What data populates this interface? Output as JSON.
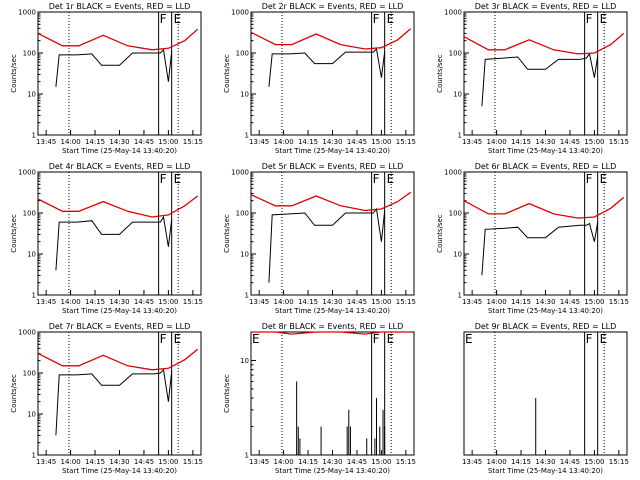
{
  "colors": {
    "events": "#000000",
    "lld": "#e00000",
    "background": "#ffffff"
  },
  "chart_data": [
    {
      "type": "line",
      "title": "Det 1r BLACK = Events, RED = LLD",
      "xlabel": "Start Time (25-May-14 13:40:20)",
      "ylabel": "Counts/sec",
      "x_ticks": [
        "13:45",
        "14:00",
        "14:15",
        "14:30",
        "14:45",
        "15:00",
        "15:15"
      ],
      "y_ticks": [
        "1",
        "10",
        "100",
        "1000"
      ],
      "y_scale": "log",
      "ylim": [
        1,
        1000
      ],
      "annotations": [
        "F",
        "E"
      ],
      "series": [
        {
          "name": "Events",
          "color": "#000000",
          "x": [
            "13:51",
            "13:53",
            "14:04",
            "14:13",
            "14:19",
            "14:30",
            "14:38",
            "14:51",
            "14:55",
            "14:57",
            "15:00",
            "15:02"
          ],
          "y": [
            15,
            90,
            90,
            95,
            50,
            50,
            100,
            100,
            100,
            120,
            20,
            110
          ]
        },
        {
          "name": "LLD",
          "color": "#e00000",
          "x": [
            "13:40",
            "13:55",
            "14:05",
            "14:20",
            "14:35",
            "14:50",
            "15:00",
            "15:10",
            "15:18"
          ],
          "y": [
            300,
            150,
            150,
            270,
            150,
            120,
            130,
            200,
            380
          ]
        }
      ]
    },
    {
      "type": "line",
      "title": "Det 2r BLACK = Events, RED = LLD",
      "xlabel": "Start Time (25-May-14 13:40:20)",
      "ylabel": "Counts/sec",
      "x_ticks": [
        "13:45",
        "14:00",
        "14:15",
        "14:30",
        "14:45",
        "15:00",
        "15:15"
      ],
      "y_ticks": [
        "1",
        "10",
        "100",
        "1000"
      ],
      "y_scale": "log",
      "ylim": [
        1,
        1000
      ],
      "annotations": [
        "F",
        "E"
      ],
      "series": [
        {
          "name": "Events",
          "color": "#000000",
          "x": [
            "13:51",
            "13:53",
            "14:04",
            "14:13",
            "14:19",
            "14:30",
            "14:38",
            "14:51",
            "14:55",
            "14:57",
            "15:00",
            "15:02"
          ],
          "y": [
            15,
            95,
            95,
            100,
            55,
            55,
            105,
            105,
            105,
            125,
            25,
            110
          ]
        },
        {
          "name": "LLD",
          "color": "#e00000",
          "x": [
            "13:40",
            "13:55",
            "14:05",
            "14:20",
            "14:35",
            "14:50",
            "15:00",
            "15:10",
            "15:18"
          ],
          "y": [
            320,
            160,
            160,
            290,
            160,
            125,
            135,
            210,
            390
          ]
        }
      ]
    },
    {
      "type": "line",
      "title": "Det 3r BLACK = Events, RED = LLD",
      "xlabel": "Start Time (25-May-14 13:40:20)",
      "ylabel": "Counts/sec",
      "x_ticks": [
        "13:45",
        "14:00",
        "14:15",
        "14:30",
        "14:45",
        "15:00",
        "15:15"
      ],
      "y_ticks": [
        "1",
        "10",
        "100",
        "1000"
      ],
      "y_scale": "log",
      "ylim": [
        1,
        1000
      ],
      "annotations": [
        "F",
        "E"
      ],
      "series": [
        {
          "name": "Events",
          "color": "#000000",
          "x": [
            "13:51",
            "13:53",
            "14:04",
            "14:13",
            "14:19",
            "14:30",
            "14:38",
            "14:51",
            "14:55",
            "14:57",
            "15:00",
            "15:02"
          ],
          "y": [
            5,
            70,
            75,
            80,
            40,
            40,
            70,
            70,
            75,
            95,
            25,
            85
          ]
        },
        {
          "name": "LLD",
          "color": "#e00000",
          "x": [
            "13:40",
            "13:55",
            "14:05",
            "14:20",
            "14:35",
            "14:50",
            "15:00",
            "15:10",
            "15:18"
          ],
          "y": [
            250,
            120,
            120,
            210,
            120,
            95,
            100,
            160,
            300
          ]
        }
      ]
    },
    {
      "type": "line",
      "title": "Det 4r BLACK = Events, RED = LLD",
      "xlabel": "Start Time (25-May-14 13:40:20)",
      "ylabel": "Counts/sec",
      "x_ticks": [
        "13:45",
        "14:00",
        "14:15",
        "14:30",
        "14:45",
        "15:00",
        "15:15"
      ],
      "y_ticks": [
        "1",
        "10",
        "100",
        "1000"
      ],
      "y_scale": "log",
      "ylim": [
        1,
        1000
      ],
      "annotations": [
        "F",
        "E"
      ],
      "series": [
        {
          "name": "Events",
          "color": "#000000",
          "x": [
            "13:51",
            "13:53",
            "14:04",
            "14:13",
            "14:19",
            "14:30",
            "14:38",
            "14:51",
            "14:55",
            "14:57",
            "15:00",
            "15:02"
          ],
          "y": [
            4,
            60,
            60,
            65,
            30,
            30,
            60,
            60,
            60,
            80,
            15,
            70
          ]
        },
        {
          "name": "LLD",
          "color": "#e00000",
          "x": [
            "13:40",
            "13:55",
            "14:05",
            "14:20",
            "14:35",
            "14:50",
            "15:00",
            "15:10",
            "15:18"
          ],
          "y": [
            220,
            110,
            110,
            190,
            110,
            80,
            90,
            150,
            260
          ]
        }
      ]
    },
    {
      "type": "line",
      "title": "Det 5r BLACK = Events, RED = LLD",
      "xlabel": "Start Time (25-May-14 13:40:20)",
      "ylabel": "Counts/sec",
      "x_ticks": [
        "13:45",
        "14:00",
        "14:15",
        "14:30",
        "14:45",
        "15:00",
        "15:15"
      ],
      "y_ticks": [
        "1",
        "10",
        "100",
        "1000"
      ],
      "y_scale": "log",
      "ylim": [
        1,
        1000
      ],
      "annotations": [
        "F",
        "E"
      ],
      "series": [
        {
          "name": "Events",
          "color": "#000000",
          "x": [
            "13:51",
            "13:53",
            "14:04",
            "14:13",
            "14:19",
            "14:30",
            "14:38",
            "14:51",
            "14:55",
            "14:57",
            "15:00",
            "15:02"
          ],
          "y": [
            2,
            90,
            95,
            100,
            50,
            50,
            100,
            100,
            100,
            125,
            20,
            115
          ]
        },
        {
          "name": "LLD",
          "color": "#e00000",
          "x": [
            "13:40",
            "13:55",
            "14:05",
            "14:20",
            "14:35",
            "14:50",
            "15:00",
            "15:10",
            "15:18"
          ],
          "y": [
            280,
            150,
            150,
            260,
            150,
            115,
            125,
            190,
            320
          ]
        }
      ]
    },
    {
      "type": "line",
      "title": "Det 6r BLACK = Events, RED = LLD",
      "xlabel": "Start Time (25-May-14 13:40:20)",
      "ylabel": "Counts/sec",
      "x_ticks": [
        "13:45",
        "14:00",
        "14:15",
        "14:30",
        "14:45",
        "15:00",
        "15:15"
      ],
      "y_ticks": [
        "1",
        "10",
        "100",
        "1000"
      ],
      "y_scale": "log",
      "ylim": [
        1,
        1000
      ],
      "annotations": [
        "F",
        "E"
      ],
      "series": [
        {
          "name": "Events",
          "color": "#000000",
          "x": [
            "13:51",
            "13:53",
            "14:04",
            "14:13",
            "14:19",
            "14:30",
            "14:38",
            "14:51",
            "14:55",
            "14:57",
            "15:00",
            "15:02"
          ],
          "y": [
            3,
            40,
            42,
            45,
            25,
            25,
            45,
            50,
            50,
            55,
            20,
            60
          ]
        },
        {
          "name": "LLD",
          "color": "#e00000",
          "x": [
            "13:40",
            "13:55",
            "14:05",
            "14:20",
            "14:35",
            "14:50",
            "15:00",
            "15:10",
            "15:18"
          ],
          "y": [
            200,
            95,
            95,
            170,
            95,
            75,
            80,
            130,
            240
          ]
        }
      ]
    },
    {
      "type": "line",
      "title": "Det 7r BLACK = Events, RED = LLD",
      "xlabel": "Start Time (25-May-14 13:40:20)",
      "ylabel": "Counts/sec",
      "x_ticks": [
        "13:45",
        "14:00",
        "14:15",
        "14:30",
        "14:45",
        "15:00",
        "15:15"
      ],
      "y_ticks": [
        "1",
        "10",
        "100",
        "1000"
      ],
      "y_scale": "log",
      "ylim": [
        1,
        1000
      ],
      "annotations": [
        "F",
        "E"
      ],
      "series": [
        {
          "name": "Events",
          "color": "#000000",
          "x": [
            "13:51",
            "13:53",
            "14:04",
            "14:13",
            "14:19",
            "14:30",
            "14:38",
            "14:51",
            "14:55",
            "14:57",
            "15:00",
            "15:02"
          ],
          "y": [
            3,
            90,
            90,
            95,
            50,
            50,
            95,
            95,
            100,
            120,
            20,
            110
          ]
        },
        {
          "name": "LLD",
          "color": "#e00000",
          "x": [
            "13:40",
            "13:55",
            "14:05",
            "14:20",
            "14:35",
            "14:50",
            "15:00",
            "15:10",
            "15:18"
          ],
          "y": [
            300,
            150,
            150,
            270,
            150,
            120,
            130,
            210,
            380
          ]
        }
      ]
    },
    {
      "type": "line",
      "title": "Det 8r BLACK = Events, RED = LLD",
      "xlabel": "Start Time (25-May-14 13:40:20)",
      "ylabel": "Counts/sec",
      "x_ticks": [
        "13:45",
        "14:00",
        "14:15",
        "14:30",
        "14:45",
        "15:00",
        "15:15"
      ],
      "y_ticks": [
        "1",
        "10"
      ],
      "y_scale": "log",
      "ylim": [
        1,
        20
      ],
      "annotations": [
        "E",
        "F",
        "E"
      ],
      "series": [
        {
          "name": "Events",
          "color": "#000000",
          "x": [
            "14:08",
            "14:09",
            "14:10",
            "14:12",
            "14:23",
            "14:32",
            "14:39",
            "14:40",
            "14:41",
            "14:51",
            "14:56",
            "14:57",
            "14:59",
            "15:01",
            "15:02"
          ],
          "y": [
            6,
            2,
            1.5,
            1,
            2,
            1,
            2,
            3,
            2,
            1.5,
            1.5,
            4,
            2,
            3,
            2
          ]
        },
        {
          "name": "LLD",
          "color": "#e00000",
          "x": [
            "13:40",
            "13:55",
            "14:05",
            "14:20",
            "14:35",
            "14:50",
            "15:00",
            "15:10",
            "15:18"
          ],
          "y": [
            20,
            20,
            19,
            20,
            20,
            19,
            20,
            20,
            20
          ]
        }
      ]
    },
    {
      "type": "line",
      "title": "Det 9r BLACK = Events, RED = LLD",
      "xlabel": "Start Time (25-May-14 13:40:20)",
      "ylabel": "",
      "x_ticks": [
        "13:45",
        "14:00",
        "14:15",
        "14:30",
        "14:45",
        "15:00",
        "15:15"
      ],
      "y_ticks": [],
      "y_scale": "log",
      "ylim": [
        1,
        20
      ],
      "annotations": [
        "E",
        "F",
        "E"
      ],
      "series": [
        {
          "name": "Events",
          "color": "#000000",
          "x": [
            "14:24"
          ],
          "y": [
            4
          ]
        }
      ]
    }
  ]
}
